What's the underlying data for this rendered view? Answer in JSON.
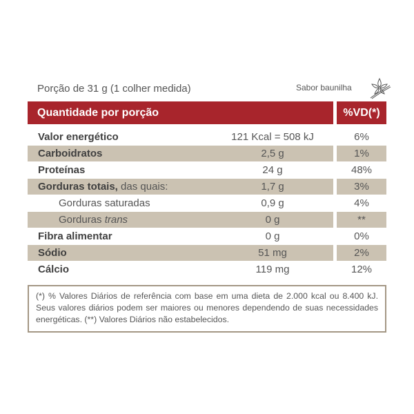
{
  "serving": "Porção de 31 g (1 colher medida)",
  "flavor": "Sabor baunilha",
  "flavor_icon": "vanilla-flower-icon",
  "colors": {
    "header": "#a8252c",
    "shade": "#cbc2b2",
    "border": "#a39684"
  },
  "header": {
    "quantity": "Quantidade por porção",
    "vd": "%VD(*)"
  },
  "rows": [
    {
      "label": "Valor energético",
      "value": "121 Kcal = 508 kJ",
      "vd": "6%"
    },
    {
      "label": "Carboidratos",
      "value": "2,5 g",
      "vd": "1%"
    },
    {
      "label": "Proteínas",
      "value": "24 g",
      "vd": "48%"
    },
    {
      "label": "Gorduras totais,",
      "label_suffix": " das quais:",
      "value": "1,7 g",
      "vd": "3%"
    },
    {
      "label": "Gorduras saturadas",
      "value": "0,9 g",
      "vd": "4%"
    },
    {
      "label": "Gorduras ",
      "label_italic": "trans",
      "value": "0 g",
      "vd": "**"
    },
    {
      "label": "Fibra alimentar",
      "value": "0 g",
      "vd": "0%"
    },
    {
      "label": "Sódio",
      "value": "51 mg",
      "vd": "2%"
    },
    {
      "label": "Cálcio",
      "value": "119 mg",
      "vd": "12%"
    }
  ],
  "footnote": "(*) % Valores Diários de referência com base em uma dieta de 2.000 kcal ou 8.400 kJ. Seus valores diários podem ser maiores ou menores dependendo de suas necessidades energéticas. (**) Valores Diários não estabelecidos."
}
